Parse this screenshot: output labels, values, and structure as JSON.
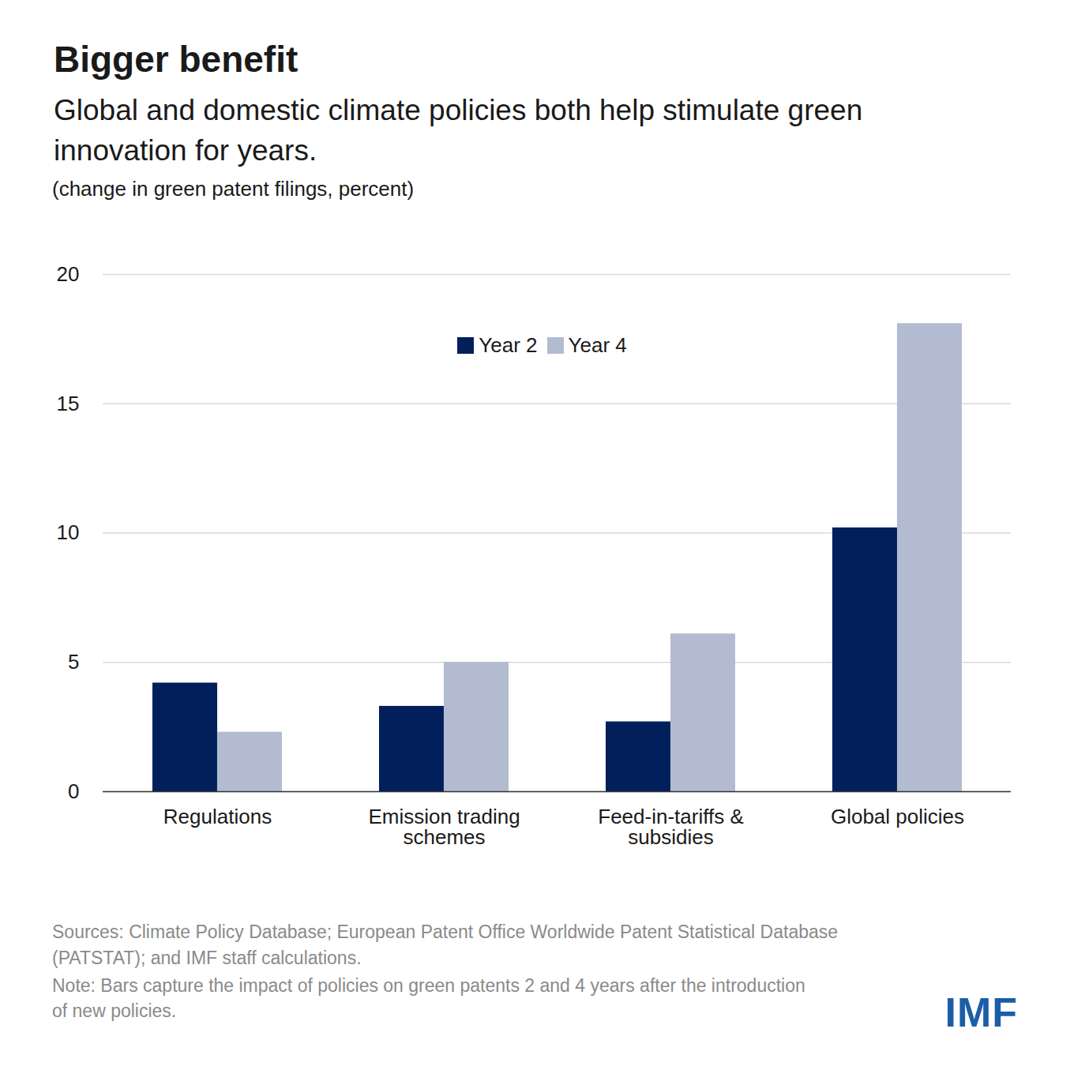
{
  "chart_data": {
    "type": "bar",
    "title": "Bigger benefit",
    "subtitle": "Global and domestic climate policies both help stimulate green innovation for years.",
    "y_label": "(change in green patent filings, percent)",
    "categories": [
      "Regulations",
      "Emission trading schemes",
      "Feed-in-tariffs & subsidies",
      "Global policies"
    ],
    "series": [
      {
        "name": "Year 2",
        "color": "#001f5b",
        "values": [
          4.2,
          3.3,
          2.7,
          10.2
        ]
      },
      {
        "name": "Year 4",
        "color": "#b3bbd1",
        "values": [
          2.3,
          5.0,
          6.1,
          18.1
        ]
      }
    ],
    "ylim": [
      0,
      20
    ],
    "yticks": [
      0,
      5,
      10,
      15,
      20
    ],
    "grid": true,
    "legend": "top",
    "source": "Sources: Climate Policy Database; European Patent Office Worldwide Patent Statistical Database (PATSTAT); and IMF staff calculations.",
    "note": "Note: Bars capture the impact of policies on green patents 2 and 4  years after the introduction of new policies.",
    "logo": "IMF"
  }
}
